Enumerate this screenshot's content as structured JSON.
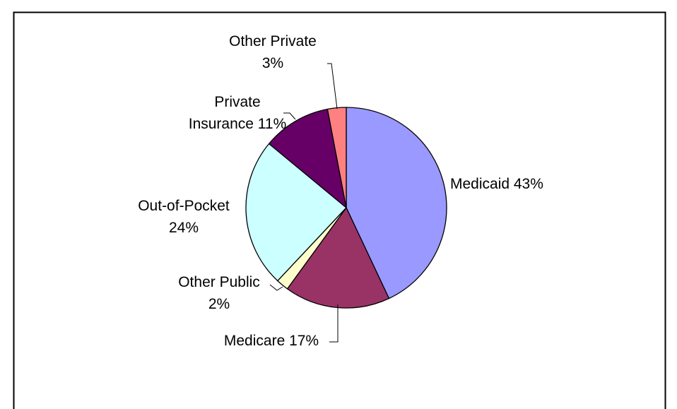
{
  "chart_data": {
    "type": "pie",
    "title": "",
    "start_angle_deg": 0,
    "direction": "clockwise",
    "legend": "none",
    "slices": [
      {
        "name": "Medicaid",
        "value": 43,
        "label_lines": [
          "Medicaid 43%"
        ],
        "color": "#9999ff"
      },
      {
        "name": "Medicare",
        "value": 17,
        "label_lines": [
          "Medicare 17%"
        ],
        "color": "#993366"
      },
      {
        "name": "Other Public",
        "value": 2,
        "label_lines": [
          "Other Public",
          "2%"
        ],
        "color": "#ffffcc"
      },
      {
        "name": "Out-of-Pocket",
        "value": 24,
        "label_lines": [
          "Out-of-Pocket",
          "24%"
        ],
        "color": "#ccffff"
      },
      {
        "name": "Private Insurance",
        "value": 11,
        "label_lines": [
          "Private",
          "Insurance 11%"
        ],
        "color": "#660066"
      },
      {
        "name": "Other Private",
        "value": 3,
        "label_lines": [
          "Other Private",
          "3%"
        ],
        "color": "#ff8080"
      }
    ]
  },
  "colors": {
    "background": "#ffffff",
    "frame": "#000000",
    "slice_outline": "#000000"
  }
}
